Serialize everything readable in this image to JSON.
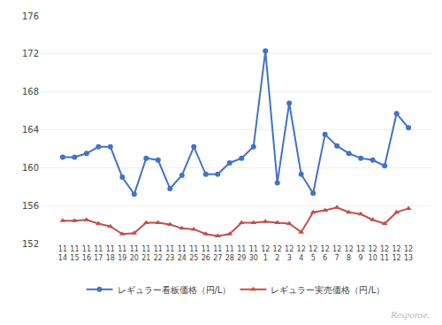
{
  "chart_data": {
    "type": "line",
    "categories": [
      "11\n14",
      "11\n15",
      "11\n16",
      "11\n17",
      "11\n18",
      "11\n19",
      "11\n20",
      "11\n21",
      "11\n22",
      "11\n23",
      "11\n24",
      "11\n25",
      "11\n26",
      "11\n27",
      "11\n28",
      "11\n29",
      "11\n30",
      "12\n1",
      "12\n2",
      "12\n3",
      "12\n4",
      "12\n5",
      "12\n6",
      "12\n7",
      "12\n8",
      "12\n9",
      "12\n10",
      "12\n11",
      "12\n12",
      "12\n13"
    ],
    "series": [
      {
        "name": "レギュラー看板価格（円/L）",
        "color": "#4472C4",
        "marker": "circle",
        "values": [
          161.1,
          161.1,
          161.5,
          162.2,
          162.2,
          159.0,
          157.2,
          161.0,
          160.8,
          157.8,
          159.2,
          162.2,
          159.3,
          159.3,
          160.5,
          161.0,
          162.2,
          172.3,
          158.4,
          166.8,
          159.3,
          157.3,
          163.5,
          162.3,
          161.5,
          161.0,
          160.8,
          160.2,
          165.7,
          164.2
        ]
      },
      {
        "name": "レギュラー実売価格（円/L）",
        "color": "#C0504D",
        "marker": "triangle-up",
        "values": [
          154.4,
          154.4,
          154.5,
          154.1,
          153.8,
          153.0,
          153.1,
          154.2,
          154.2,
          154.0,
          153.6,
          153.5,
          153.0,
          152.8,
          153.0,
          154.2,
          154.2,
          154.3,
          154.2,
          154.1,
          153.2,
          155.3,
          155.5,
          155.8,
          155.3,
          155.1,
          154.5,
          154.1,
          155.3,
          155.7
        ]
      }
    ],
    "ylim": [
      152,
      176
    ],
    "yticks": [
      152,
      156,
      160,
      164,
      168,
      172,
      176
    ],
    "grid": true,
    "legend": "bottom",
    "annotations": [
      "Response."
    ]
  }
}
